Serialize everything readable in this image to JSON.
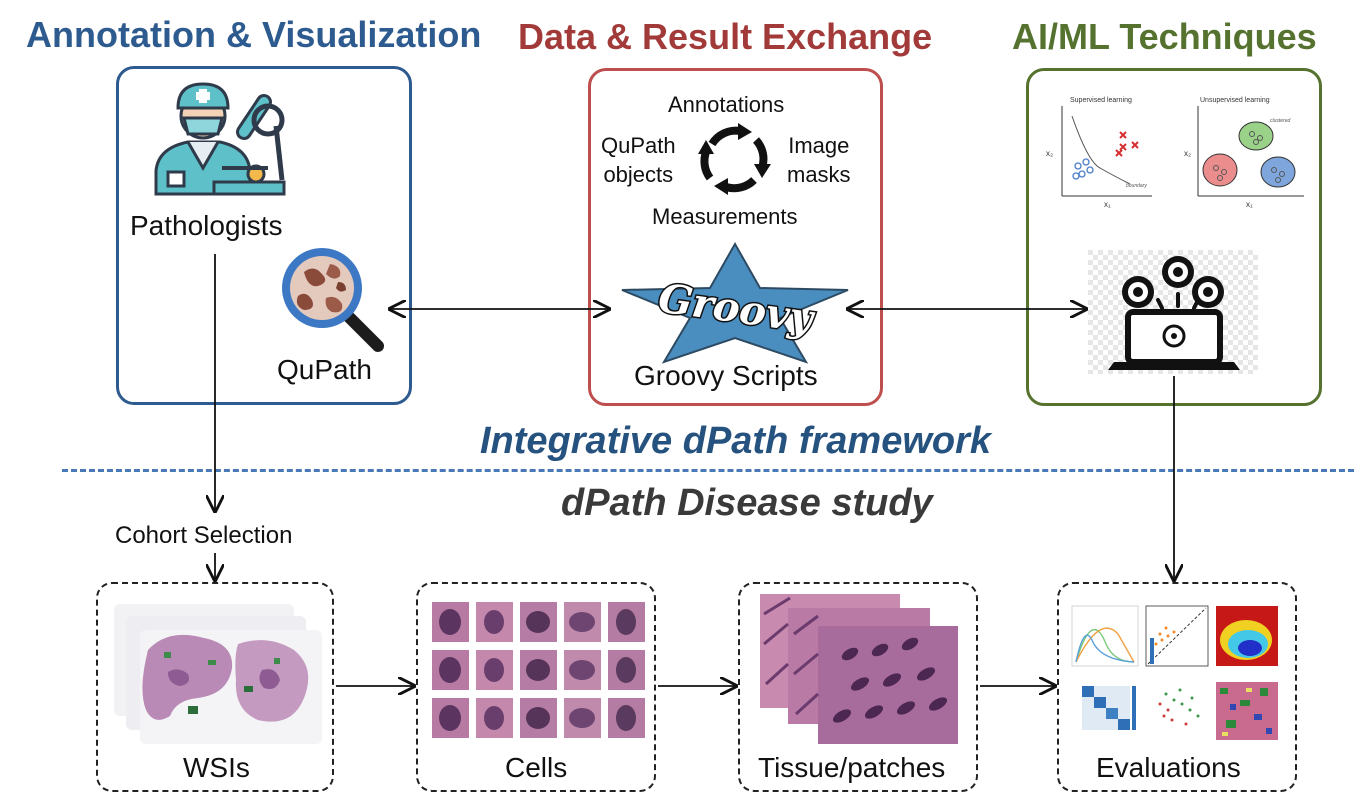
{
  "headers": {
    "annotation": "Annotation & Visualization",
    "exchange": "Data & Result Exchange",
    "aiml": "AI/ML Techniques"
  },
  "annotation_box": {
    "pathologists": "Pathologists",
    "qupath": "QuPath"
  },
  "exchange_box": {
    "annotations": "Annotations",
    "qupath_objects_1": "QuPath",
    "qupath_objects_2": "objects",
    "image_masks_1": "Image",
    "image_masks_2": "masks",
    "measurements": "Measurements",
    "groovy_logo": "Groovy",
    "groovy_scripts": "Groovy Scripts"
  },
  "aiml_box": {
    "supervised": "Supervised learning",
    "unsupervised": "Unsupervised learning",
    "x1": "x₁",
    "x2": "x₂",
    "boundary": "boundary",
    "clustered": "clustered"
  },
  "framework_title": "Integrative dPath framework",
  "study_title": "dPath Disease study",
  "cohort_selection": "Cohort Selection",
  "pipeline": {
    "wsis": "WSIs",
    "cells": "Cells",
    "tissue": "Tissue/patches",
    "evaluations": "Evaluations"
  },
  "colors": {
    "annotation": "#2e5b8f",
    "exchange": "#a33a3a",
    "aiml": "#56722f",
    "framework": "#25527f",
    "dash": "#4a78b8"
  }
}
